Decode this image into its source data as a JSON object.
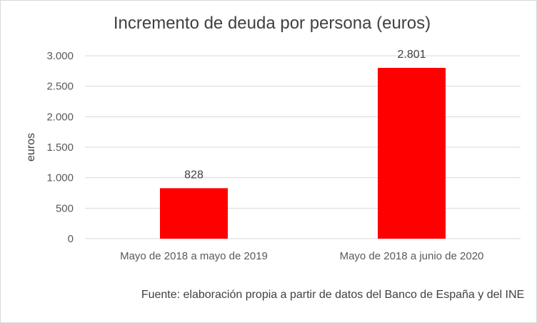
{
  "chart_data": {
    "type": "bar",
    "title": "Incremento de deuda por persona (euros)",
    "xlabel": "",
    "ylabel": "euros",
    "categories": [
      "Mayo de 2018 a mayo de 2019",
      "Mayo de 2018 a junio de 2020"
    ],
    "values": [
      828,
      2801
    ],
    "value_labels": [
      "828",
      "2.801"
    ],
    "ylim": [
      0,
      3000
    ],
    "yticks": [
      0,
      500,
      1000,
      1500,
      2000,
      2500,
      3000
    ],
    "ytick_labels": [
      "0",
      "500",
      "1.000",
      "1.500",
      "2.000",
      "2.500",
      "3.000"
    ],
    "grid": true,
    "legend": "none",
    "bar_color": "#ff0000",
    "grid_color": "#d9d9d9"
  },
  "note": {
    "source": "Fuente: elaboración propia a partir de datos del Banco de España y del INE"
  }
}
